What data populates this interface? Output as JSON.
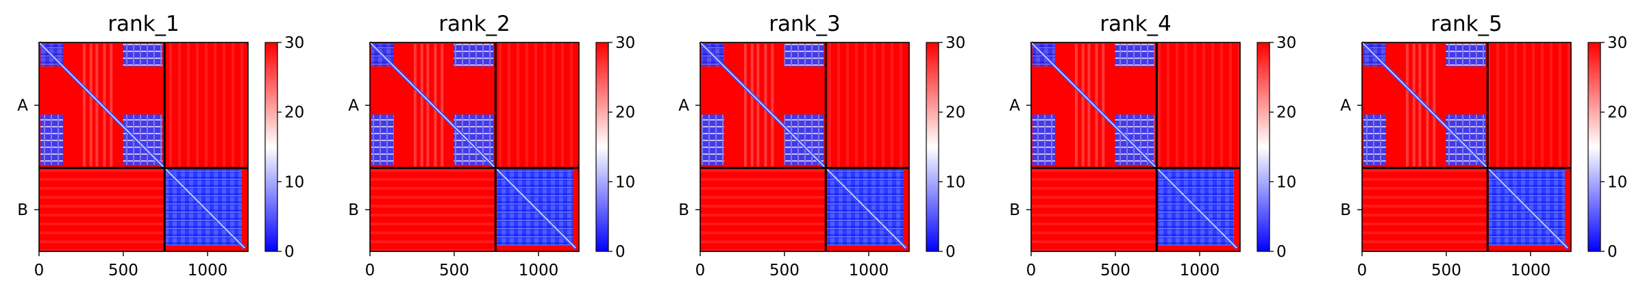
{
  "chart_data": {
    "type": "heatmap",
    "colormap": {
      "name": "bwr",
      "colors": [
        "#0000ff",
        "#ffffff",
        "#ff0000"
      ],
      "vmin": 0,
      "vmax": 30
    },
    "colorbar_ticks": [
      "0",
      "10",
      "20",
      "30"
    ],
    "x_ticks": [
      0,
      500,
      1000
    ],
    "x_tick_labels": [
      "0",
      "500",
      "1000"
    ],
    "data_extent": [
      0,
      1240
    ],
    "chain_labels": [
      "A",
      "B"
    ],
    "chain_boundaries": [
      0,
      745,
      1240
    ],
    "panels": [
      {
        "title": "rank_1"
      },
      {
        "title": "rank_2"
      },
      {
        "title": "rank_3"
      },
      {
        "title": "rank_4"
      },
      {
        "title": "rank_5"
      }
    ]
  }
}
